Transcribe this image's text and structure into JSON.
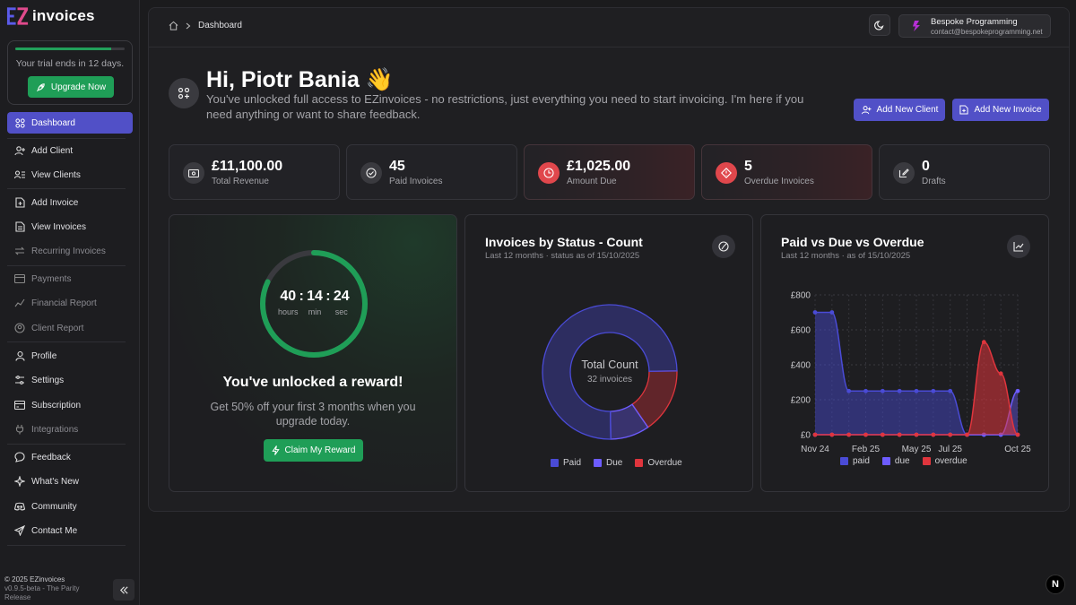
{
  "brand": {
    "logo_letters": "EZ",
    "name": "invoices"
  },
  "trial": {
    "text": "Your trial ends in 12 days.",
    "progress": 0.88,
    "upgrade_label": "Upgrade Now"
  },
  "nav": {
    "dashboard": "Dashboard",
    "add_client": "Add Client",
    "view_clients": "View Clients",
    "add_invoice": "Add Invoice",
    "view_invoices": "View Invoices",
    "recurring": "Recurring Invoices",
    "payments": "Payments",
    "financial_report": "Financial Report",
    "client_report": "Client Report",
    "profile": "Profile",
    "settings": "Settings",
    "subscription": "Subscription",
    "integrations": "Integrations",
    "feedback": "Feedback",
    "whats_new": "What's New",
    "community": "Community",
    "contact": "Contact Me"
  },
  "footer": {
    "copyright": "© 2025 EZinvoices",
    "version": "v0.9.5-beta - The Parity Release"
  },
  "header": {
    "breadcrumb": "Dashboard",
    "user_name": "Bespoke Programming",
    "user_email": "contact@bespokeprogramming.net"
  },
  "welcome": {
    "title": "Hi, Piotr Bania 👋",
    "subtitle": "You've unlocked full access to EZinvoices - no restrictions, just everything you need to start invoicing. I'm here if you need anything or want to share feedback.",
    "add_client_label": "Add New Client",
    "add_invoice_label": "Add New Invoice"
  },
  "stats": [
    {
      "value": "£11,100.00",
      "label": "Total Revenue"
    },
    {
      "value": "45",
      "label": "Paid Invoices"
    },
    {
      "value": "£1,025.00",
      "label": "Amount Due"
    },
    {
      "value": "5",
      "label": "Overdue Invoices"
    },
    {
      "value": "0",
      "label": "Drafts"
    }
  ],
  "reward": {
    "hours": "40",
    "minutes": "14",
    "seconds": "24",
    "hours_label": "hours",
    "minutes_label": "min",
    "seconds_label": "sec",
    "timer_progress": 0.82,
    "title": "You've unlocked a reward!",
    "subtitle": "Get 50% off your first 3 months when you upgrade today.",
    "claim_label": "Claim My Reward"
  },
  "colors": {
    "paid": "#4a4bd6",
    "due": "#6d5cff",
    "overdue": "#e0353d",
    "green": "#1f9e57"
  },
  "chart_data": [
    {
      "type": "pie",
      "title": "Invoices by Status - Count",
      "subtitle": "Last 12 months · status as of 15/10/2025",
      "center_title": "Total Count",
      "center_sub": "32 invoices",
      "categories": [
        "Paid",
        "Due",
        "Overdue"
      ],
      "values": [
        24,
        3,
        5
      ]
    },
    {
      "type": "area",
      "title": "Paid vs Due vs Overdue",
      "subtitle": "Last 12 months · as of 15/10/2025",
      "x_ticks": [
        "Nov 24",
        "Feb 25",
        "May 25",
        "Jul 25",
        "Oct 25"
      ],
      "y_ticks": [
        "£0",
        "£200",
        "£400",
        "£600",
        "£800"
      ],
      "ylim": [
        0,
        800
      ],
      "series": [
        {
          "name": "paid",
          "values": [
            700,
            700,
            250,
            250,
            250,
            250,
            250,
            250,
            250,
            0,
            0,
            0,
            0
          ]
        },
        {
          "name": "due",
          "values": [
            0,
            0,
            0,
            0,
            0,
            0,
            0,
            0,
            0,
            0,
            0,
            0,
            250
          ]
        },
        {
          "name": "overdue",
          "values": [
            0,
            0,
            0,
            0,
            0,
            0,
            0,
            0,
            0,
            0,
            530,
            350,
            0
          ]
        }
      ]
    }
  ]
}
